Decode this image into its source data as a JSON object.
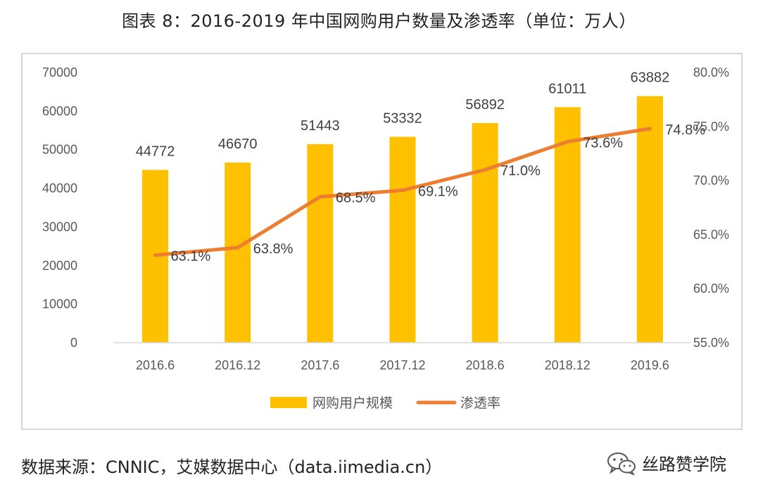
{
  "title": "图表 8：2016-2019 年中国网购用户数量及渗透率（单位：万人）",
  "source": "数据来源：CNNIC，艾媒数据中心（data.iimedia.cn）",
  "watermark": {
    "text": "丝路赞学院",
    "icon": "wechat-icon"
  },
  "colors": {
    "bar": "#FFC000",
    "line": "#ED7D31",
    "axis": "#d9d9d9",
    "text": "#595959"
  },
  "chart_data": {
    "type": "bar",
    "categories": [
      "2016.6",
      "2016.12",
      "2017.6",
      "2017.12",
      "2018.6",
      "2018.12",
      "2019.6"
    ],
    "series": [
      {
        "name": "网购用户规模",
        "type": "bar",
        "axis": "left",
        "values": [
          44772,
          46670,
          51443,
          53332,
          56892,
          61011,
          63882
        ]
      },
      {
        "name": "渗透率",
        "type": "line",
        "axis": "right",
        "values": [
          63.1,
          63.8,
          68.5,
          69.1,
          71.0,
          73.6,
          74.8
        ]
      }
    ],
    "y_left": {
      "min": 0,
      "max": 70000,
      "ticks": [
        "0",
        "10000",
        "20000",
        "30000",
        "40000",
        "50000",
        "60000",
        "70000"
      ]
    },
    "y_right": {
      "min": 55.0,
      "max": 80.0,
      "ticks": [
        "55.0%",
        "60.0%",
        "65.0%",
        "70.0%",
        "75.0%",
        "80.0%"
      ]
    },
    "bar_labels": [
      "44772",
      "46670",
      "51443",
      "53332",
      "56892",
      "61011",
      "63882"
    ],
    "line_labels": [
      "63.1%",
      "63.8%",
      "68.5%",
      "69.1%",
      "71.0%",
      "73.6%",
      "74.8%"
    ],
    "grid": false,
    "legend": {
      "position": "bottom",
      "items": [
        "网购用户规模",
        "渗透率"
      ]
    }
  }
}
